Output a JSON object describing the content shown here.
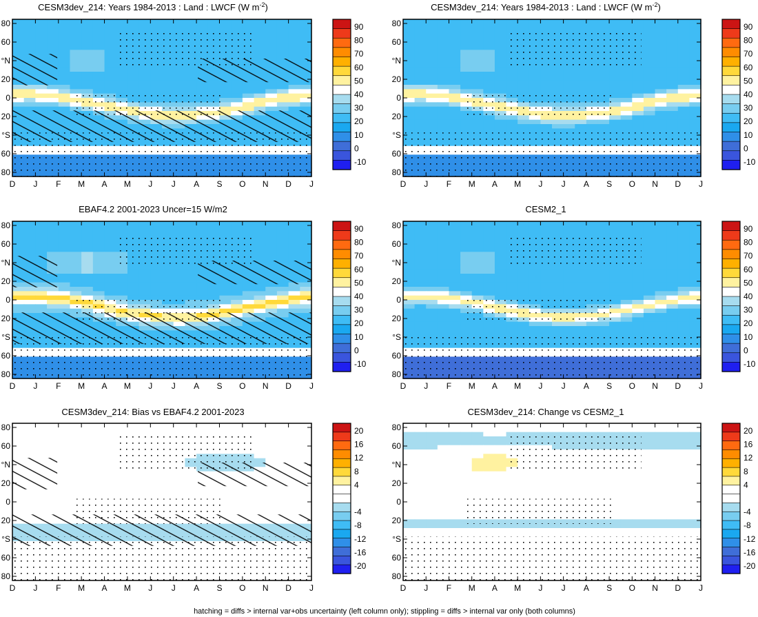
{
  "footer": "hatching = diffs > internal var+obs uncertainty (left column only); stippling = diffs > internal var only (both columns)",
  "colors": {
    "mean_scale": [
      "#1f1ff0",
      "#3a55dd",
      "#3f6ed8",
      "#2f8fe8",
      "#1aa8f0",
      "#3fbcf5",
      "#78cdf0",
      "#a7dcef",
      "#ffffff",
      "#fff2a0",
      "#ffd93a",
      "#ffb000",
      "#ff8c00",
      "#ff6a10",
      "#ee3a1a",
      "#cc1414"
    ],
    "diff_scale": [
      "#1f1ff0",
      "#3a55dd",
      "#3f6ed8",
      "#2f8fe8",
      "#1aa8f0",
      "#3fbcf5",
      "#78cdf0",
      "#a7dcef",
      "#ffffff",
      "#ffffff",
      "#fff2a0",
      "#ffd93a",
      "#ffb000",
      "#ff8c00",
      "#ff6a10",
      "#ee3a1a",
      "#cc1414"
    ]
  },
  "chart_data": [
    {
      "type": "heatmap",
      "title": "CESM3dev_214: Years 1984-2013 : Land : LWCF (W m",
      "title_sup": "-2",
      "title_tail": ")",
      "x_ticks": [
        "D",
        "J",
        "F",
        "M",
        "A",
        "M",
        "J",
        "J",
        "A",
        "S",
        "O",
        "N",
        "D",
        "J"
      ],
      "y_ticks": [
        "80",
        "60",
        "°N",
        "20",
        "0",
        "20",
        "°S",
        "60",
        "80"
      ],
      "colorbar": [
        "90",
        "80",
        "70",
        "60",
        "50",
        "40",
        "30",
        "20",
        "10",
        "0",
        "-10"
      ],
      "hatching": true,
      "fields": {
        "itcz_peak": 52,
        "band_shift": "seasonal"
      }
    },
    {
      "type": "heatmap",
      "title": "CESM3dev_214: Years 1984-2013 : Land : LWCF (W m",
      "title_sup": "-2",
      "title_tail": ")",
      "x_ticks": [
        "D",
        "J",
        "F",
        "M",
        "A",
        "M",
        "J",
        "J",
        "A",
        "S",
        "O",
        "N",
        "D",
        "J"
      ],
      "y_ticks": [
        "80",
        "60",
        "°N",
        "20",
        "0",
        "20",
        "°S",
        "60",
        "80"
      ],
      "colorbar": [
        "90",
        "80",
        "70",
        "60",
        "50",
        "40",
        "30",
        "20",
        "10",
        "0",
        "-10"
      ],
      "hatching": false
    },
    {
      "type": "heatmap",
      "title": "EBAF4.2 2001-2023 Uncer=15 W/m2",
      "x_ticks": [
        "D",
        "J",
        "F",
        "M",
        "A",
        "M",
        "J",
        "J",
        "A",
        "S",
        "O",
        "N",
        "D",
        "J"
      ],
      "y_ticks": [
        "80",
        "60",
        "°N",
        "20",
        "0",
        "20",
        "°S",
        "60",
        "80"
      ],
      "colorbar": [
        "90",
        "80",
        "70",
        "60",
        "50",
        "40",
        "30",
        "20",
        "10",
        "0",
        "-10"
      ],
      "hatching": true
    },
    {
      "type": "heatmap",
      "title": "CESM2_1",
      "x_ticks": [
        "D",
        "J",
        "F",
        "M",
        "A",
        "M",
        "J",
        "J",
        "A",
        "S",
        "O",
        "N",
        "D",
        "J"
      ],
      "y_ticks": [
        "80",
        "60",
        "°N",
        "20",
        "0",
        "20",
        "°S",
        "60",
        "80"
      ],
      "colorbar": [
        "90",
        "80",
        "70",
        "60",
        "50",
        "40",
        "30",
        "20",
        "10",
        "0",
        "-10"
      ],
      "hatching": false
    },
    {
      "type": "heatmap",
      "title": "CESM3dev_214: Bias vs EBAF4.2 2001-2023",
      "x_ticks": [
        "D",
        "J",
        "F",
        "M",
        "A",
        "M",
        "J",
        "J",
        "A",
        "S",
        "O",
        "N",
        "D",
        "J"
      ],
      "y_ticks": [
        "80",
        "60",
        "°N",
        "20",
        "0",
        "20",
        "°S",
        "60",
        "80"
      ],
      "colorbar": [
        "20",
        "16",
        "12",
        "8",
        "4",
        "",
        "-4",
        "-8",
        "-12",
        "-16",
        "-20"
      ],
      "hatching": true
    },
    {
      "type": "heatmap",
      "title": "CESM3dev_214: Change vs CESM2_1",
      "x_ticks": [
        "D",
        "J",
        "F",
        "M",
        "A",
        "M",
        "J",
        "J",
        "A",
        "S",
        "O",
        "N",
        "D",
        "J"
      ],
      "y_ticks": [
        "80",
        "60",
        "°N",
        "20",
        "0",
        "20",
        "°S",
        "60",
        "80"
      ],
      "colorbar": [
        "20",
        "16",
        "12",
        "8",
        "4",
        "",
        "-4",
        "-8",
        "-12",
        "-16",
        "-20"
      ],
      "hatching": false
    }
  ]
}
